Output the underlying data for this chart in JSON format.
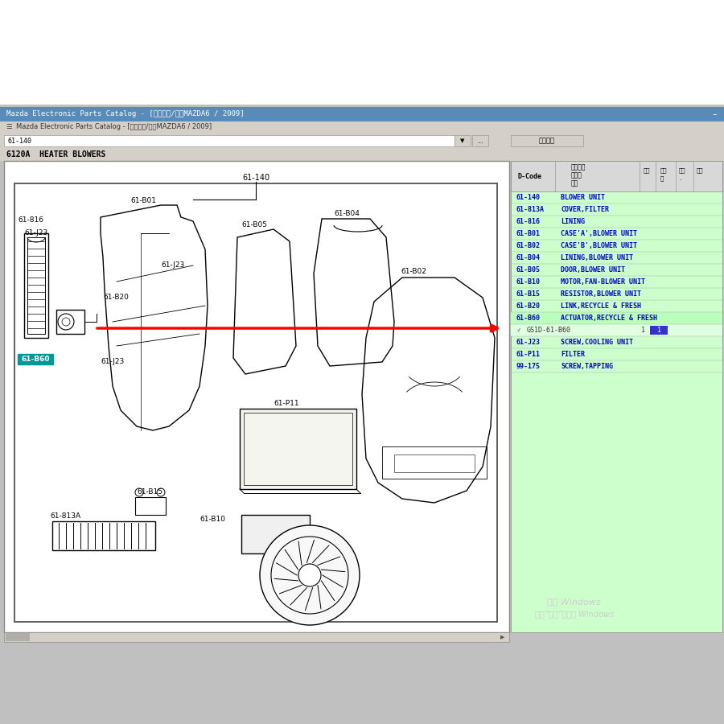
{
  "bg_outer": "#ffffff",
  "bg_app": "#c8c8c8",
  "bg_titlebar": "#5a8ab8",
  "bg_menubar": "#d4d0c8",
  "bg_toolbar": "#d4d0c8",
  "bg_diagram": "#ffffff",
  "bg_right_panel": "#ccffcc",
  "bg_right_header": "#e0e0e0",
  "parts_text_color": "#0000cc",
  "highlight_row_color": "#bbffbb",
  "part_num_bg": "#e0ffe0",
  "window_title": "Mazda Electronic Parts Catalog - [目录图像/文本MAZDA6 / 2009]",
  "section_code": "6120A",
  "section_name": "HEATER BLOWERS",
  "parts": [
    {
      "code": "61-140",
      "name": "BLOWER UNIT",
      "is_part_num": false
    },
    {
      "code": "61-813A",
      "name": "COVER,FILTER",
      "is_part_num": false
    },
    {
      "code": "61-816",
      "name": "LINING",
      "is_part_num": false
    },
    {
      "code": "61-B01",
      "name": "CASE'A',BLOWER UNIT",
      "is_part_num": false
    },
    {
      "code": "61-B02",
      "name": "CASE'B',BLOWER UNIT",
      "is_part_num": false
    },
    {
      "code": "61-B04",
      "name": "LINING,BLOWER UNIT",
      "is_part_num": false
    },
    {
      "code": "61-B05",
      "name": "DOOR,BLOWER UNIT",
      "is_part_num": false
    },
    {
      "code": "61-B10",
      "name": "MOTOR,FAN-BLOWER UNIT",
      "is_part_num": false
    },
    {
      "code": "61-B15",
      "name": "RESISTOR,BLOWER UNIT",
      "is_part_num": false
    },
    {
      "code": "61-B20",
      "name": "LINK,RECYCLE & FRESH",
      "is_part_num": false
    },
    {
      "code": "61-B60",
      "name": "ACTUATOR,RECYCLE & FRESH",
      "is_part_num": false,
      "highlight": true
    },
    {
      "code": "",
      "name": "GS1D-61-B60",
      "is_part_num": true,
      "qty": "1"
    },
    {
      "code": "61-J23",
      "name": "SCREW,COOLING UNIT",
      "is_part_num": false
    },
    {
      "code": "61-P11",
      "name": "FILTER",
      "is_part_num": false
    },
    {
      "code": "99-175",
      "name": "SCREW,TAPPING",
      "is_part_num": false
    }
  ],
  "col_headers_ch": [
    "部件名称",
    "部件号",
    "说明"
  ],
  "col_headers_num": [
    "数量",
    "订购数",
    "信息.",
    "代替"
  ],
  "windows_watermark1": "激活 Windows",
  "windows_watermark2": "转到“设置”以激活 Windows"
}
